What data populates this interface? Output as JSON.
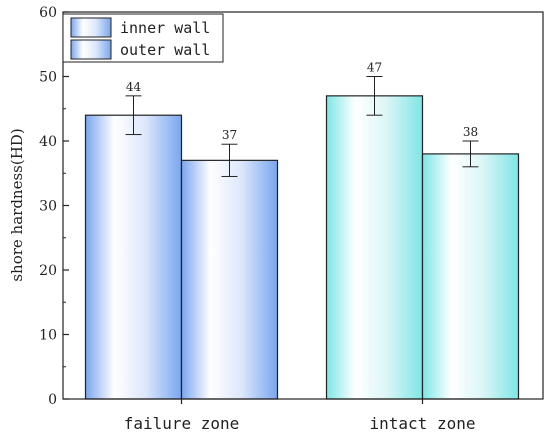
{
  "chart_data": {
    "type": "bar",
    "categories": [
      "failure zone",
      "intact zone"
    ],
    "ylabel": "shore hardness(HD)",
    "ylim": [
      0,
      60
    ],
    "yticks": [
      "0",
      "10",
      "20",
      "30",
      "40",
      "50",
      "60"
    ],
    "grid": false,
    "legend_position": "top-left",
    "series": [
      {
        "name": "inner wall",
        "values": [
          44,
          47
        ],
        "errors": [
          3,
          3
        ],
        "labels": [
          "44",
          "47"
        ]
      },
      {
        "name": "outer wall",
        "values": [
          37,
          38
        ],
        "errors": [
          2.5,
          2
        ],
        "labels": [
          "37",
          "38"
        ]
      }
    ],
    "colors": {
      "failure_zone": "#7aa6ee",
      "intact_zone": "#7ee6e6",
      "axis": "#222222"
    }
  }
}
